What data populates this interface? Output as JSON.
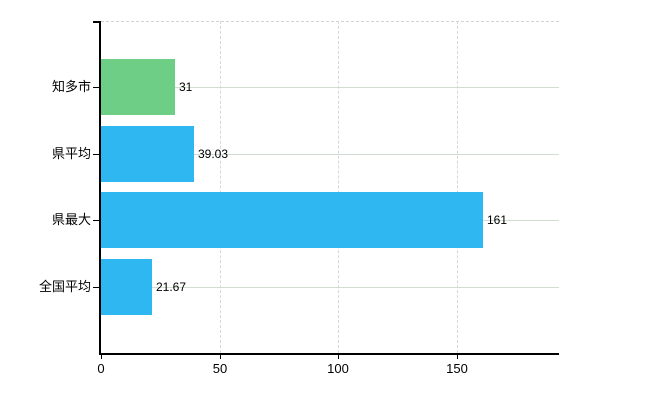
{
  "chart_data": {
    "type": "bar",
    "orientation": "horizontal",
    "title": "",
    "xlabel": "",
    "ylabel": "",
    "categories": [
      "知多市",
      "県平均",
      "県最大",
      "全国平均"
    ],
    "values": [
      31,
      39.03,
      161,
      21.67
    ],
    "value_labels": [
      "31",
      "39.03",
      "161",
      "21.67"
    ],
    "bar_colors": [
      "#6FCE86",
      "#2FB7F1",
      "#2FB7F1",
      "#2FB7F1"
    ],
    "x_axis": {
      "min": 0,
      "max": 193,
      "ticks": [
        0,
        50,
        100,
        150
      ],
      "tick_labels": [
        "0",
        "50",
        "100",
        "150"
      ]
    },
    "legend": null,
    "grid": {
      "horizontal": "solid",
      "vertical": "dashed",
      "h_color": "#d2ddd2",
      "v_color": "#d6d6de",
      "top_border_color": "#d3d3d3"
    },
    "colors": {
      "axis": "#000000",
      "text": "#000000",
      "background": "#ffffff"
    }
  }
}
